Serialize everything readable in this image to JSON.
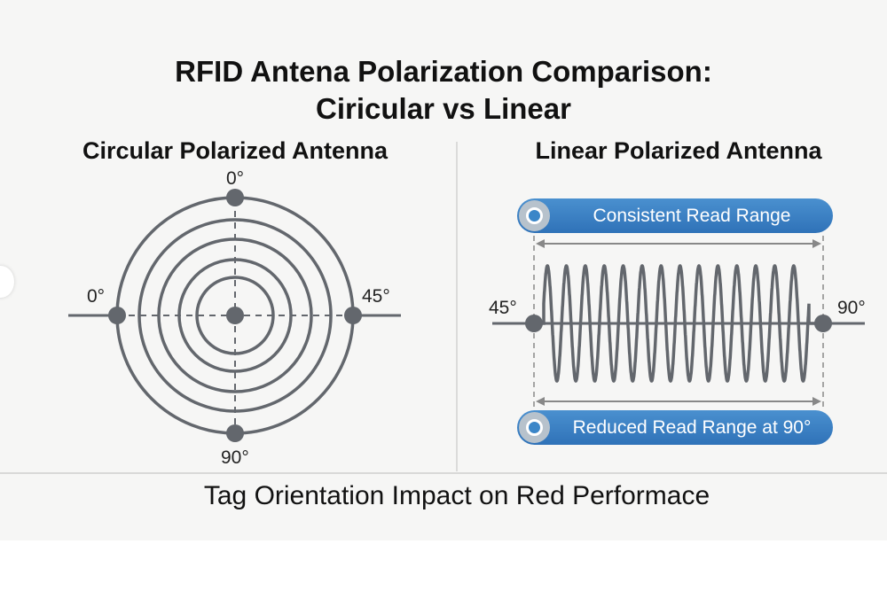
{
  "title": {
    "line1": "RFID Antena Polarization Comparison:",
    "line2": "Ciricular vs Linear"
  },
  "circular": {
    "heading": "Circular Polarized Antenna",
    "labels": {
      "top": "0°",
      "left": "0°",
      "right": "45°",
      "bottom": "90°"
    },
    "ring_count": 5
  },
  "linear": {
    "heading": "Linear Polarized Antenna",
    "labels": {
      "left": "45°",
      "right": "90°"
    },
    "top_pill": "Consistent Read Range",
    "bottom_pill": "Reduced Read Range at 90°",
    "wave_cycles": 14
  },
  "footer": "Tag Orientation Impact on Red Performace",
  "colors": {
    "stroke": "#63676d",
    "pill": "#3b82c4",
    "background": "#f6f6f5"
  }
}
